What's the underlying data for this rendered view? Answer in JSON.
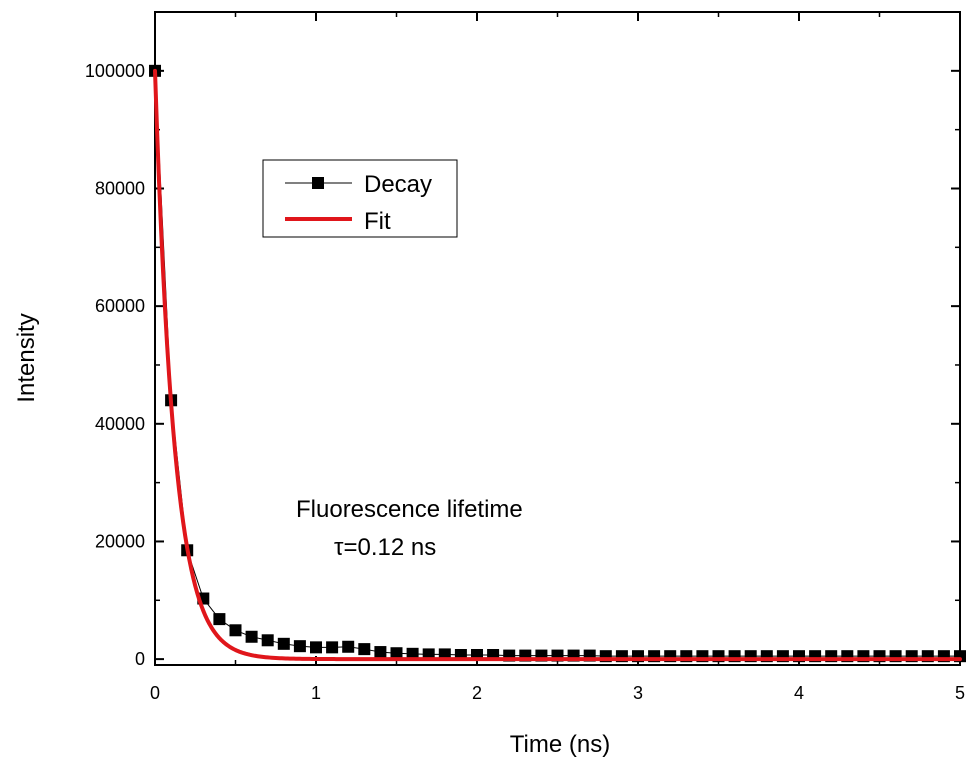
{
  "chart_data": {
    "type": "scatter",
    "xlabel": "Time (ns)",
    "ylabel": "Intensity",
    "xlim": [
      0,
      5
    ],
    "ylim": [
      -1000,
      110000
    ],
    "x_ticks": [
      0,
      1,
      2,
      3,
      4,
      5
    ],
    "y_ticks": [
      0,
      20000,
      40000,
      60000,
      80000,
      100000
    ],
    "x_tick_labels": [
      "0",
      "1",
      "2",
      "3",
      "4",
      "5"
    ],
    "y_tick_labels": [
      "0",
      "20000",
      "40000",
      "60000",
      "80000",
      "100000"
    ],
    "grid": false,
    "legend_placement": "upper-left",
    "series": [
      {
        "name": "Decay",
        "kind": "scatter-line",
        "marker": "square",
        "color": "#000000",
        "x": [
          0.0,
          0.1,
          0.2,
          0.3,
          0.4,
          0.5,
          0.6,
          0.7,
          0.8,
          0.9,
          1.0,
          1.1,
          1.2,
          1.3,
          1.4,
          1.5,
          1.6,
          1.7,
          1.8,
          1.9,
          2.0,
          2.1,
          2.2,
          2.3,
          2.4,
          2.5,
          2.6,
          2.7,
          2.8,
          2.9,
          3.0,
          3.1,
          3.2,
          3.3,
          3.4,
          3.5,
          3.6,
          3.7,
          3.8,
          3.9,
          4.0,
          4.1,
          4.2,
          4.3,
          4.4,
          4.5,
          4.6,
          4.7,
          4.8,
          4.9,
          5.0
        ],
        "y": [
          100000,
          44000,
          18500,
          10300,
          6800,
          4900,
          3800,
          3200,
          2600,
          2200,
          2000,
          2000,
          2100,
          1700,
          1200,
          1000,
          900,
          800,
          800,
          700,
          700,
          700,
          600,
          600,
          600,
          600,
          600,
          600,
          500,
          500,
          500,
          500,
          500,
          500,
          500,
          500,
          500,
          500,
          500,
          500,
          500,
          500,
          500,
          500,
          500,
          500,
          500,
          500,
          500,
          500,
          500
        ]
      },
      {
        "name": "Fit",
        "kind": "line",
        "color": "#e0161b",
        "model": "exponential",
        "amplitude": 100000,
        "offset": 0,
        "tau": 0.12
      }
    ],
    "annotations": [
      {
        "text": "Fluorescence lifetime"
      },
      {
        "text": "τ=0.12 ns"
      }
    ]
  }
}
